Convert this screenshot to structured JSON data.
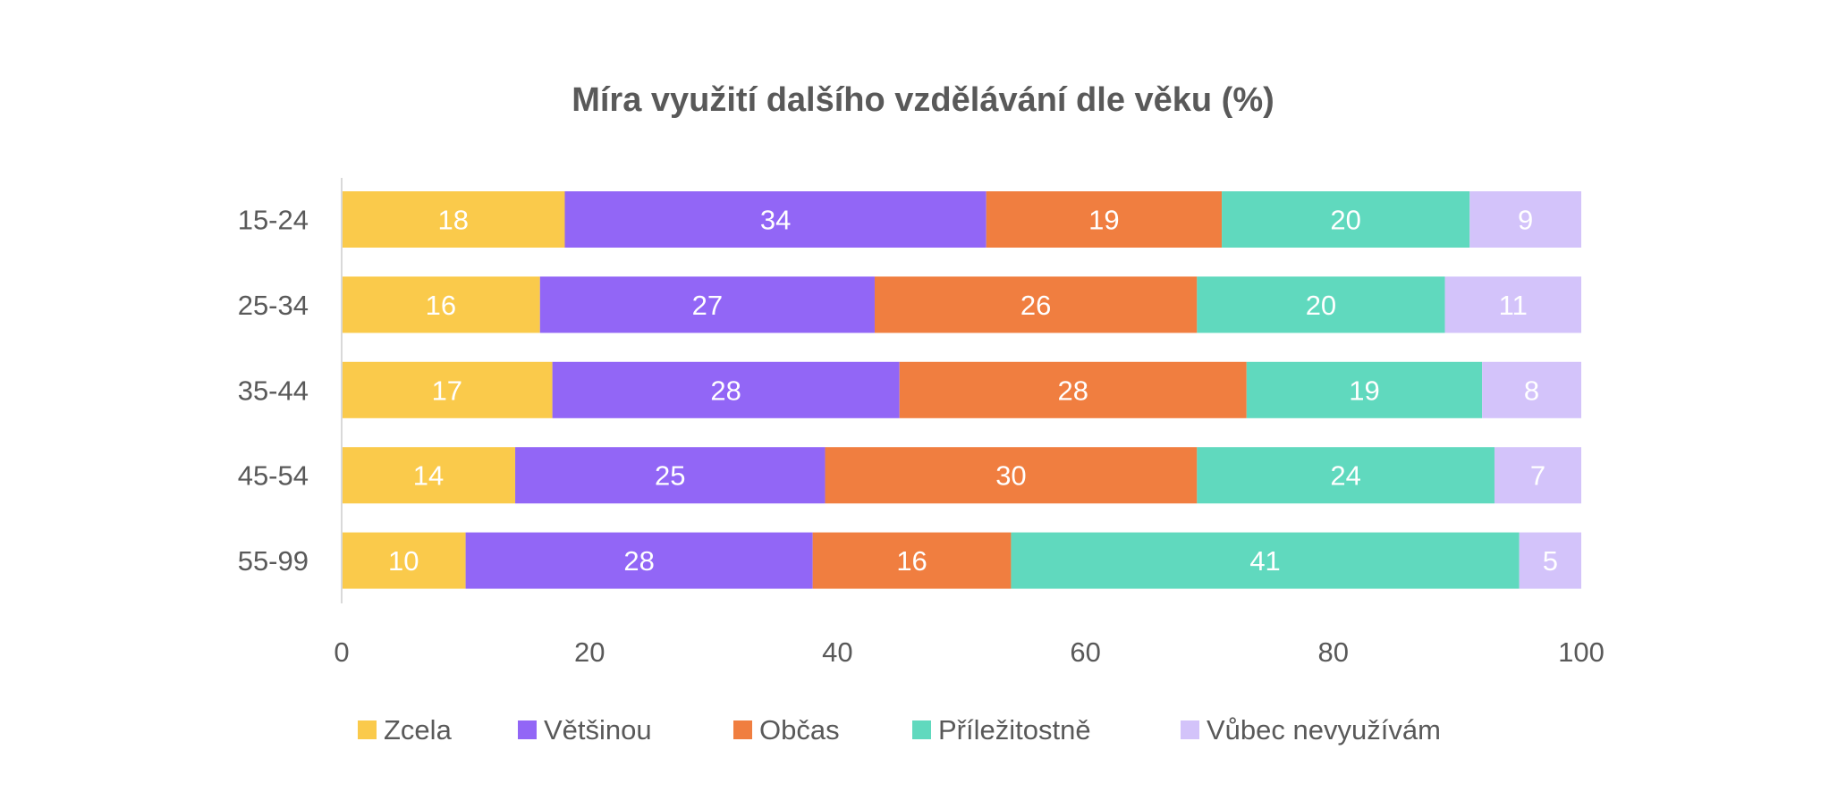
{
  "chart_data": {
    "type": "bar",
    "orientation": "horizontal",
    "stacked": true,
    "title": "Míra využití dalšího vzdělávání dle věku (%)",
    "xlabel": "",
    "ylabel": "",
    "xlim": [
      0,
      100
    ],
    "xticks": [
      "0",
      "20",
      "40",
      "60",
      "80",
      "100"
    ],
    "grid": false,
    "legend_position": "bottom",
    "categories": [
      "15-24",
      "25-34",
      "35-44",
      "45-54",
      "55-99"
    ],
    "series": [
      {
        "name": "Zcela",
        "color": "#FACA4B",
        "values": [
          18,
          16,
          17,
          14,
          10
        ]
      },
      {
        "name": "Většinou",
        "color": "#9266F6",
        "values": [
          34,
          27,
          28,
          25,
          28
        ]
      },
      {
        "name": "Občas",
        "color": "#F07E40",
        "values": [
          19,
          26,
          28,
          30,
          16
        ]
      },
      {
        "name": "Příležitostně",
        "color": "#60D9BE",
        "values": [
          20,
          20,
          19,
          24,
          41
        ]
      },
      {
        "name": "Vůbec nevyužívám",
        "color": "#D3C3FA",
        "values": [
          9,
          11,
          8,
          7,
          5
        ]
      }
    ]
  }
}
